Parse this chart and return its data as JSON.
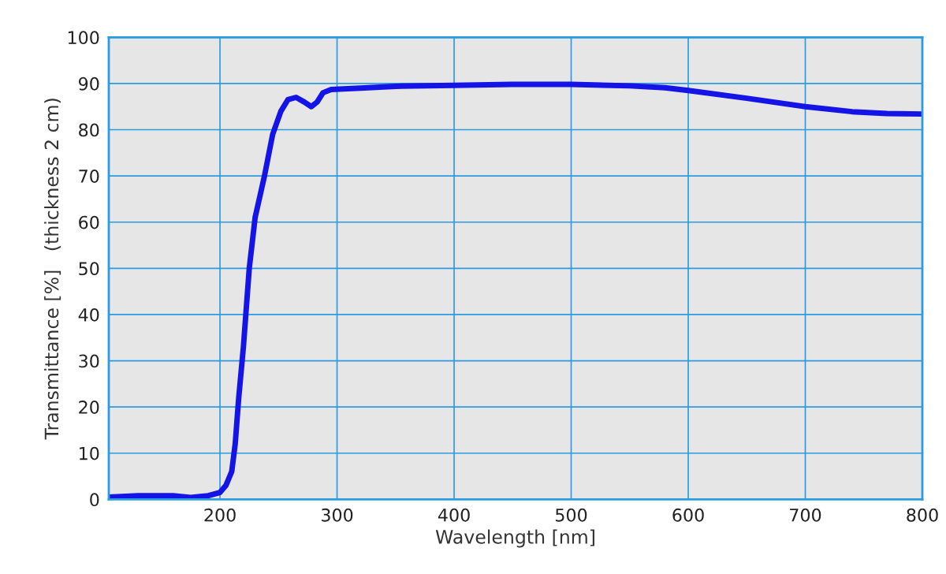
{
  "chart_data": {
    "type": "line",
    "xlabel": "Wavelength [nm]",
    "ylabel": "Transmittance [%]   (thickness 2 cm)",
    "x": [
      105,
      130,
      160,
      175,
      190,
      200,
      205,
      210,
      213,
      216,
      220,
      225,
      230,
      238,
      245,
      252,
      258,
      265,
      272,
      278,
      283,
      288,
      295,
      320,
      350,
      400,
      450,
      500,
      550,
      580,
      600,
      650,
      700,
      740,
      770,
      800
    ],
    "series": [
      {
        "color": "#1414e6",
        "values": [
          0.5,
          0.8,
          0.8,
          0.4,
          0.8,
          1.5,
          3,
          6,
          12,
          22,
          33,
          50,
          61,
          70,
          79,
          84,
          86.5,
          87,
          86,
          85,
          86,
          88,
          88.7,
          89,
          89.4,
          89.6,
          89.8,
          89.8,
          89.5,
          89.1,
          88.5,
          86.8,
          85,
          83.9,
          83.5,
          83.4
        ]
      }
    ],
    "xlim": [
      105,
      800
    ],
    "xticks": [
      200,
      300,
      400,
      500,
      600,
      700,
      800
    ],
    "ylim": [
      0,
      100
    ],
    "yticks": [
      0,
      10,
      20,
      30,
      40,
      50,
      60,
      70,
      80,
      90,
      100
    ],
    "grid": true,
    "legend": false,
    "marker": "none",
    "line_style": "solid"
  }
}
